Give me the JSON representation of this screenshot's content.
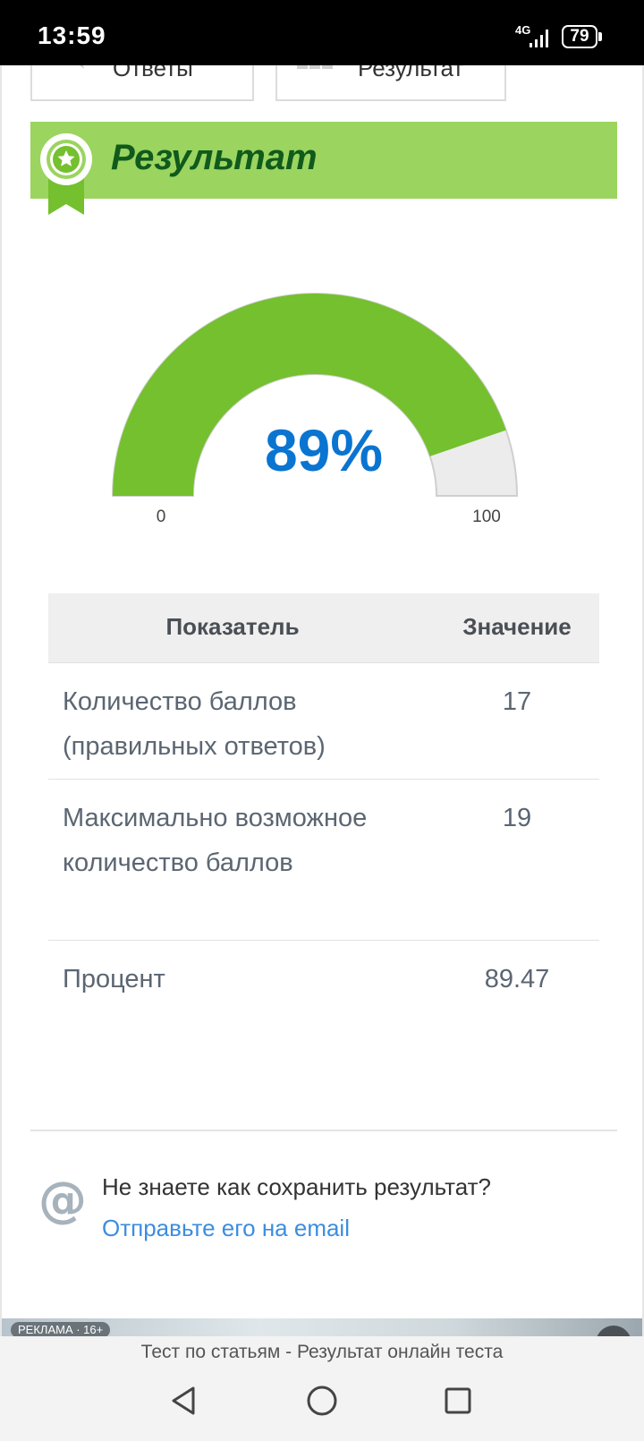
{
  "status": {
    "time": "13:59",
    "network": "4G",
    "battery": "79"
  },
  "tabs": {
    "answers_label": "Ответы",
    "result_label": "Результат"
  },
  "banner": {
    "title": "Результат"
  },
  "gauge": {
    "percent_text": "89%",
    "value": 89.47,
    "min_label": "0",
    "max_label": "100",
    "min": 0,
    "max": 100,
    "fill_color": "#74c02e",
    "rest_color": "#ececec"
  },
  "table": {
    "header_indicator": "Показатель",
    "header_value": "Значение",
    "rows": [
      {
        "label": "Количество баллов (правильных ответов)",
        "value": "17"
      },
      {
        "label": "Максимально возможное количество баллов",
        "value": "19"
      },
      {
        "label": "Процент",
        "value": "89.47"
      }
    ]
  },
  "save": {
    "question": "Не знаете как сохранить результат?",
    "link": "Отправьте его на email"
  },
  "ad": {
    "label": "РЕКЛАМА · 16+"
  },
  "browser": {
    "page_title": "Тест по статьям - Результат онлайн теста"
  },
  "icons": {
    "medal": "award-medal-icon",
    "at": "at-sign-icon",
    "back": "back-triangle-icon",
    "home": "home-circle-icon",
    "recents": "recents-square-icon"
  }
}
